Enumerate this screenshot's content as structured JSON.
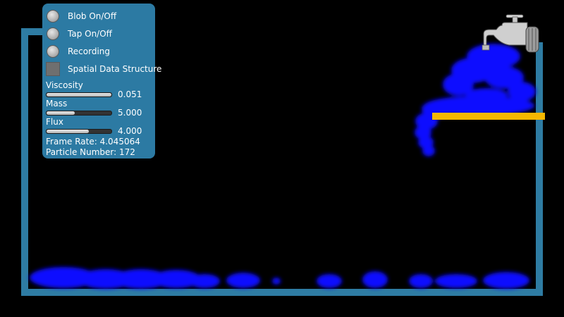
{
  "controls": {
    "toggles": [
      {
        "label": "Blob On/Off",
        "kind": "radio"
      },
      {
        "label": "Tap On/Off",
        "kind": "radio"
      },
      {
        "label": "Recording",
        "kind": "radio"
      },
      {
        "label": "Spatial Data Structure",
        "kind": "checkbox"
      }
    ],
    "sliders": [
      {
        "label": "Viscosity",
        "value_text": "0.051",
        "fill_fraction": 1.0
      },
      {
        "label": "Mass",
        "value_text": "5.000",
        "fill_fraction": 0.43
      },
      {
        "label": "Flux",
        "value_text": "4.000",
        "fill_fraction": 0.65
      }
    ],
    "stats": {
      "frame_rate_label": "Frame Rate:",
      "frame_rate_value": "4.045064",
      "particle_label": "Particle Number:",
      "particle_value": "172"
    }
  },
  "scene": {
    "icons": {
      "faucet": "faucet-icon"
    },
    "colors": {
      "background": "#000000",
      "container": "#2e7ca3",
      "fluid": "#0a0aff",
      "ledge": "#f5b800",
      "panel": "#2c7aa3"
    }
  }
}
